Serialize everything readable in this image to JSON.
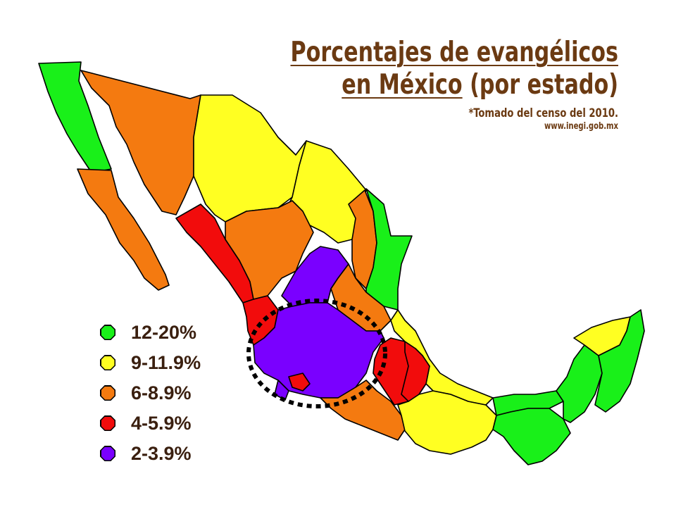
{
  "title": {
    "line1": "Porcentajes de evangélicos",
    "line2_underlined": "en México",
    "line2_rest": " (por estado)",
    "note": "*Tomado del censo del 2010.",
    "source": "www.inegi.gob.mx"
  },
  "colors": {
    "green": "#19f019",
    "yellow": "#ffff22",
    "orange": "#f47a10",
    "red": "#f20c0c",
    "purple": "#7a00ff",
    "title_text": "#6b3a12",
    "highlight_ring": "#000000"
  },
  "legend": [
    {
      "label": "12-20%",
      "color": "#19f019"
    },
    {
      "label": "9-11.9%",
      "color": "#ffff22"
    },
    {
      "label": "6-8.9%",
      "color": "#f47a10"
    },
    {
      "label": "4-5.9%",
      "color": "#f20c0c"
    },
    {
      "label": "2-3.9%",
      "color": "#7a00ff"
    }
  ]
}
